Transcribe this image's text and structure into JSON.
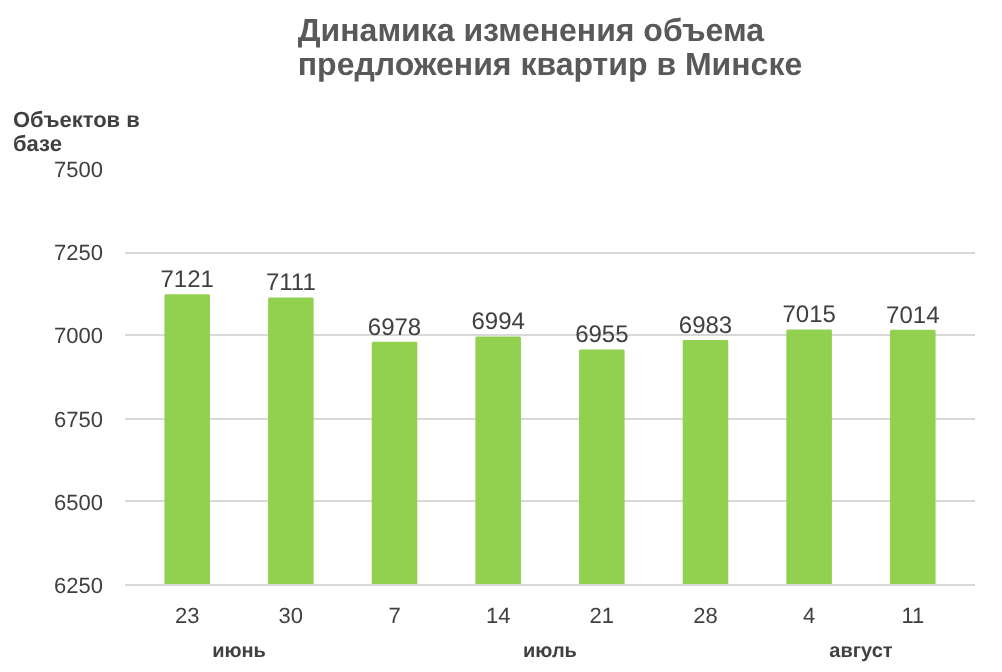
{
  "chart_data": {
    "type": "bar",
    "title": "Динамика изменения объема предложения квартир в Минске",
    "ylabel": "Объектов в базе",
    "categories": [
      "23",
      "30",
      "7",
      "14",
      "21",
      "28",
      "4",
      "11"
    ],
    "values": [
      7121,
      7111,
      6978,
      6994,
      6955,
      6983,
      7015,
      7014
    ],
    "color": "#92d050",
    "ylim": [
      6250,
      7500
    ],
    "yticks": [
      6250,
      6500,
      6750,
      7000,
      7250,
      7500
    ],
    "grid": "y",
    "data_labels": true,
    "annotations": [
      "июнь",
      "июль",
      "август"
    ]
  }
}
